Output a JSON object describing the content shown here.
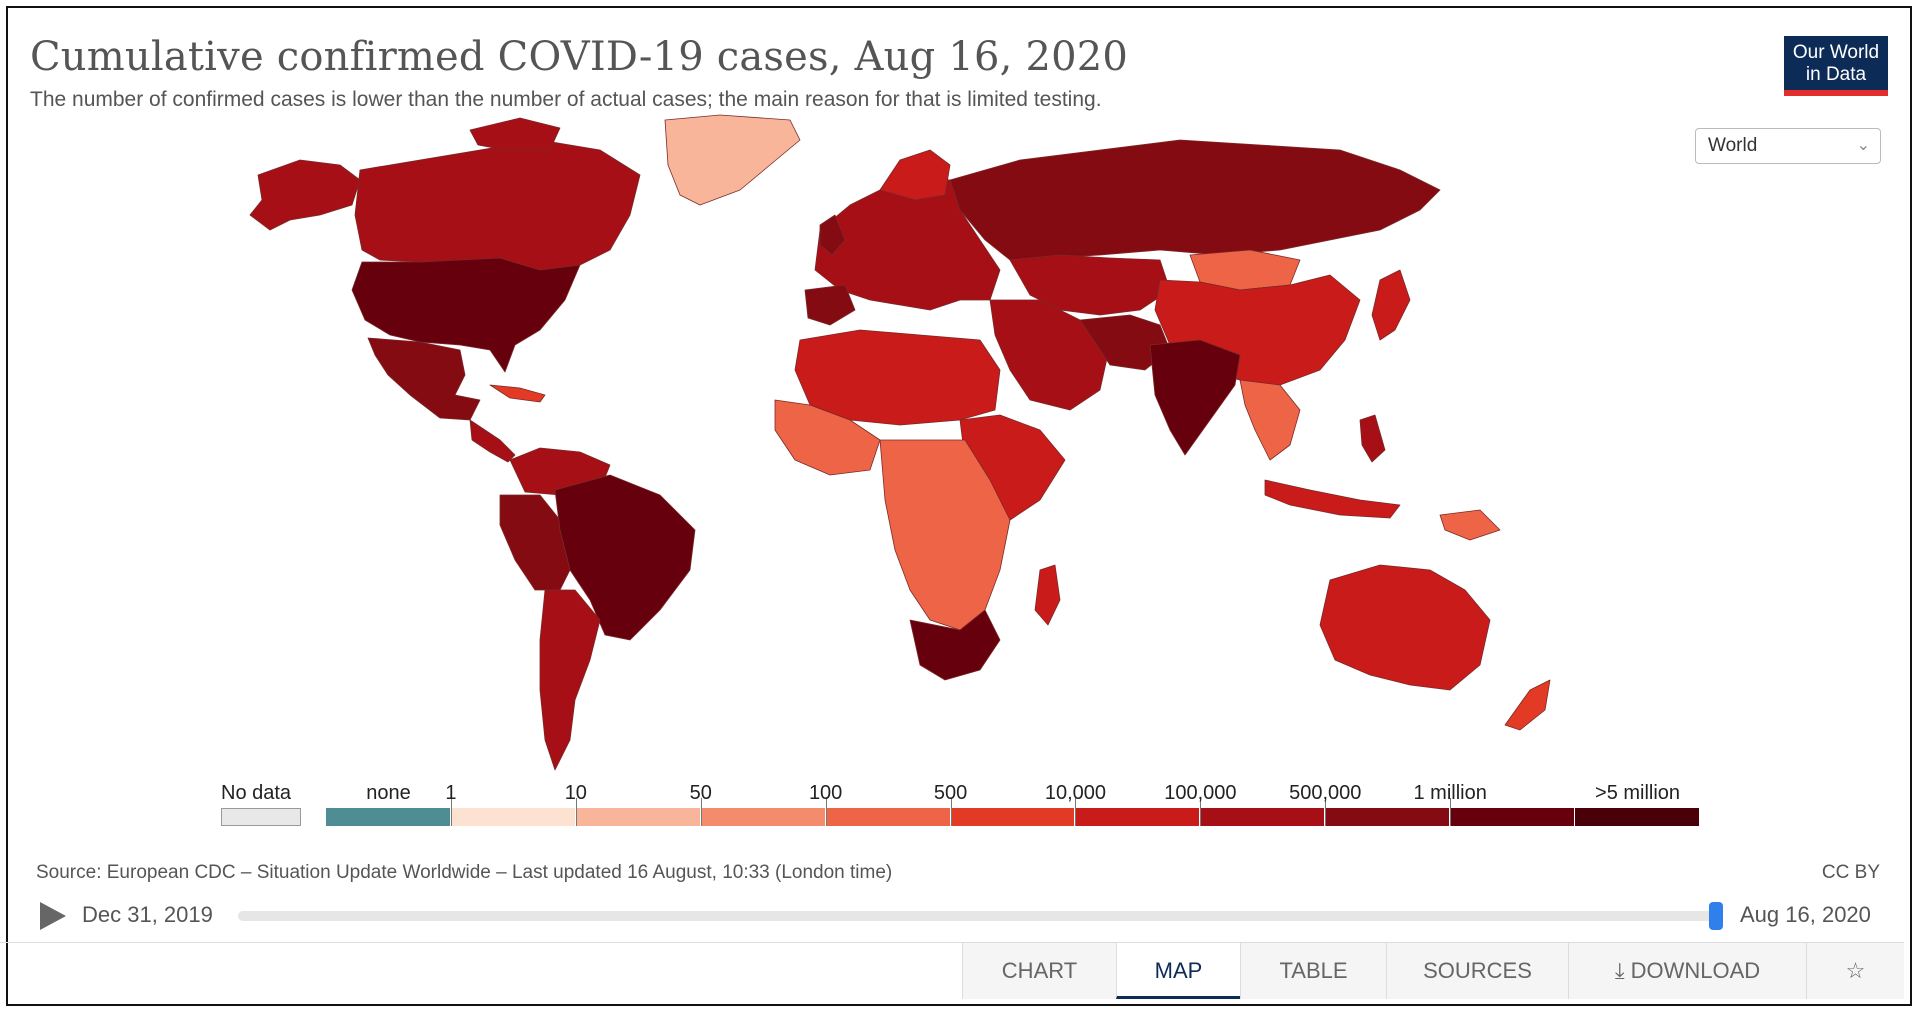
{
  "header": {
    "title": "Cumulative confirmed COVID-19 cases, Aug 16, 2020",
    "subtitle": "The number of confirmed cases is lower than the number of actual cases; the main reason for that is limited testing.",
    "logo_line1": "Our World",
    "logo_line2": "in Data"
  },
  "region_select": {
    "value": "World",
    "icon": "chevron-down-icon"
  },
  "legend": {
    "no_data_label": "No data",
    "bins": [
      {
        "label": "none",
        "color": "#4f8d95"
      },
      {
        "label": "1",
        "color": "#fde2d2"
      },
      {
        "label": "10",
        "color": "#f8b59a"
      },
      {
        "label": "50",
        "color": "#f48b6b"
      },
      {
        "label": "100",
        "color": "#ee6446"
      },
      {
        "label": "500",
        "color": "#e33a25"
      },
      {
        "label": "10,000",
        "color": "#c81b1a"
      },
      {
        "label": "100,000",
        "color": "#a50f15"
      },
      {
        "label": "500,000",
        "color": "#850b12"
      },
      {
        "label": "1 million",
        "color": "#67000d"
      },
      {
        "label": ">5 million",
        "color": "#4a0009"
      }
    ]
  },
  "source": "Source: European CDC – Situation Update Worldwide – Last updated 16 August, 10:33 (London time)",
  "license": "CC BY",
  "timeline": {
    "start": "Dec 31, 2019",
    "end": "Aug 16, 2020",
    "progress": 1.0
  },
  "tabs": [
    {
      "label": "CHART"
    },
    {
      "label": "MAP",
      "active": true
    },
    {
      "label": "TABLE"
    },
    {
      "label": "SOURCES"
    },
    {
      "label": "DOWNLOAD",
      "icon": "download-icon"
    },
    {
      "icon": "share-icon"
    }
  ],
  "colors": {
    "brand_navy": "#0d2b57",
    "brand_red": "#e22d2d",
    "slider_blue": "#2f80ed"
  }
}
